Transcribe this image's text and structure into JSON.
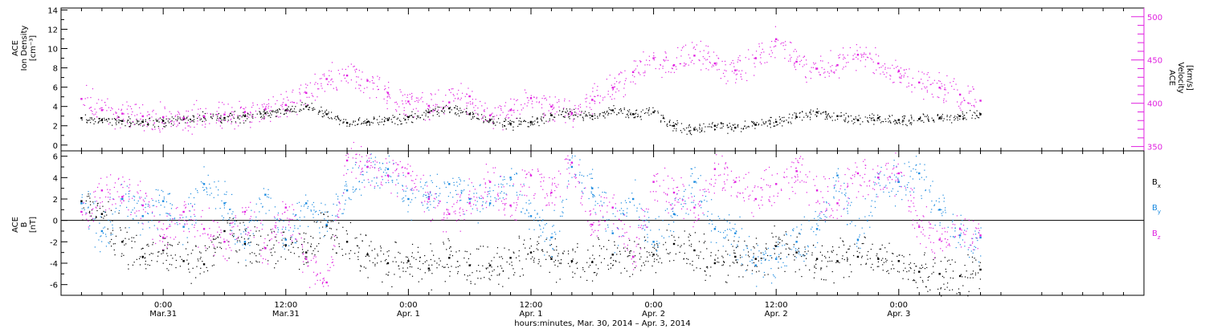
{
  "chart_data": [
    {
      "type": "scatter",
      "left_axis": {
        "label_lines": [
          "ACE",
          "Ion Density",
          "[cm⁻³]"
        ],
        "ticks": [
          0,
          2,
          4,
          6,
          8,
          10,
          12,
          14
        ],
        "ylim": [
          -0.6,
          14.2
        ]
      },
      "right_axis": {
        "label_lines": [
          "ACE",
          "Velocity",
          "[km/s]"
        ],
        "ticks": [
          350,
          400,
          450,
          500
        ],
        "ylim": [
          345,
          510
        ],
        "color": "#e020e0"
      },
      "series": [
        {
          "axis": "left",
          "color": "#000000",
          "x": [
            -8,
            -6,
            -4,
            -2,
            0,
            2,
            4,
            6,
            8,
            10,
            12,
            14,
            16,
            18,
            20,
            22,
            24,
            26,
            28,
            30,
            32,
            34,
            36,
            38,
            40,
            42,
            44,
            46,
            48,
            50,
            52,
            54,
            56,
            58,
            60,
            62,
            64,
            66,
            68,
            70,
            72,
            74,
            76,
            78,
            80
          ],
          "values": [
            2.8,
            2.6,
            2.5,
            2.4,
            2.5,
            2.7,
            2.9,
            2.8,
            3.0,
            3.3,
            3.6,
            4.0,
            3.2,
            2.3,
            2.4,
            2.6,
            2.9,
            3.4,
            3.8,
            3.2,
            2.6,
            2.2,
            2.4,
            3.1,
            3.3,
            3.0,
            3.6,
            3.2,
            3.4,
            2.0,
            1.6,
            2.0,
            1.8,
            2.1,
            2.4,
            2.9,
            3.4,
            3.0,
            2.6,
            2.8,
            2.6,
            2.7,
            2.8,
            3.0,
            3.2
          ]
        },
        {
          "axis": "right",
          "color": "#e020e0",
          "x": [
            -8,
            -6,
            -4,
            -2,
            0,
            2,
            4,
            6,
            8,
            10,
            12,
            14,
            16,
            18,
            20,
            22,
            24,
            26,
            28,
            30,
            32,
            34,
            36,
            38,
            40,
            42,
            44,
            46,
            48,
            50,
            52,
            54,
            56,
            58,
            60,
            62,
            64,
            66,
            68,
            70,
            72,
            74,
            76,
            78,
            80
          ],
          "values": [
            405,
            392,
            388,
            385,
            384,
            383,
            385,
            387,
            390,
            393,
            398,
            412,
            428,
            432,
            426,
            412,
            402,
            397,
            401,
            408,
            386,
            392,
            406,
            396,
            388,
            404,
            418,
            436,
            452,
            444,
            455,
            446,
            438,
            452,
            474,
            448,
            440,
            444,
            456,
            446,
            437,
            424,
            418,
            410,
            403
          ]
        }
      ]
    },
    {
      "type": "scatter",
      "left_axis": {
        "label_lines": [
          "ACE",
          "B",
          "[nT]"
        ],
        "ticks": [
          -6,
          -4,
          -2,
          0,
          2,
          4,
          6
        ],
        "ylim": [
          -7,
          6.5
        ]
      },
      "zero_line": true,
      "legend_position": "right",
      "series": [
        {
          "name": "Bx",
          "color": "#000000",
          "x": [
            -8,
            -6,
            -4,
            -2,
            0,
            2,
            4,
            6,
            8,
            10,
            12,
            14,
            16,
            18,
            20,
            22,
            24,
            26,
            28,
            30,
            32,
            34,
            36,
            38,
            40,
            42,
            44,
            46,
            48,
            50,
            52,
            54,
            56,
            58,
            60,
            62,
            64,
            66,
            68,
            70,
            72,
            74,
            76,
            78,
            80
          ],
          "values": [
            1.8,
            0.6,
            -2.0,
            -3.4,
            -2.8,
            -3.8,
            -4.1,
            -1.0,
            -2.2,
            -2.6,
            -2.3,
            -3.0,
            -0.5,
            -2.0,
            -3.2,
            -4.0,
            -3.8,
            -4.5,
            -3.5,
            -4.2,
            -4.2,
            -3.5,
            -3.0,
            -3.6,
            -3.8,
            -3.9,
            -3.2,
            -3.4,
            -3.2,
            -2.2,
            -2.8,
            -4.0,
            -3.4,
            -3.6,
            -2.4,
            -3.0,
            -3.6,
            -3.8,
            -3.4,
            -3.6,
            -3.8,
            -4.8,
            -5.0,
            -5.2,
            -4.6
          ]
        },
        {
          "name": "By",
          "color": "#1a8ae0",
          "x": [
            -8,
            -6,
            -4,
            -2,
            0,
            2,
            4,
            6,
            8,
            10,
            12,
            14,
            16,
            18,
            20,
            22,
            24,
            26,
            28,
            30,
            32,
            34,
            36,
            38,
            40,
            42,
            44,
            46,
            48,
            50,
            52,
            54,
            56,
            58,
            60,
            62,
            64,
            66,
            68,
            70,
            72,
            74,
            76,
            78,
            80
          ],
          "values": [
            1.6,
            -1.0,
            2.0,
            0.4,
            1.8,
            -0.6,
            3.4,
            1.6,
            -2.0,
            2.4,
            -1.8,
            1.6,
            -0.4,
            2.8,
            5.0,
            4.8,
            2.0,
            2.2,
            3.4,
            2.0,
            1.6,
            4.0,
            0.4,
            -1.6,
            5.0,
            3.0,
            -1.2,
            2.0,
            -2.0,
            0.6,
            3.6,
            -0.8,
            -1.2,
            -4.2,
            -3.6,
            -2.0,
            -0.8,
            4.2,
            -1.8,
            4.0,
            3.6,
            4.4,
            1.0,
            -1.4,
            -1.6
          ]
        },
        {
          "name": "Bz",
          "color": "#e020e0",
          "x": [
            -8,
            -6,
            -4,
            -2,
            0,
            2,
            4,
            6,
            8,
            10,
            12,
            14,
            16,
            18,
            20,
            22,
            24,
            26,
            28,
            30,
            32,
            34,
            36,
            38,
            40,
            42,
            44,
            46,
            48,
            50,
            52,
            54,
            56,
            58,
            60,
            62,
            64,
            66,
            68,
            70,
            72,
            74,
            76,
            78,
            80
          ],
          "values": [
            0.8,
            2.8,
            2.2,
            1.4,
            -1.6,
            0.8,
            -0.8,
            -2.0,
            0.8,
            -2.6,
            1.2,
            -3.6,
            -5.8,
            5.6,
            5.0,
            4.2,
            4.4,
            2.0,
            0.6,
            1.6,
            3.6,
            1.4,
            4.2,
            2.6,
            5.4,
            -0.4,
            1.2,
            -3.4,
            3.6,
            2.6,
            1.2,
            4.8,
            3.6,
            2.0,
            3.4,
            4.6,
            2.8,
            1.6,
            4.4,
            4.0,
            4.4,
            -0.6,
            -1.8,
            -0.8,
            -1.4
          ]
        }
      ]
    }
  ],
  "x_axis": {
    "label": "hours:minutes, Mar. 30, 2014 – Apr.  3, 2014",
    "xlim": [
      -10,
      96
    ],
    "ticks": [
      {
        "x": 0,
        "top": "0:00",
        "bottom": "Mar.31"
      },
      {
        "x": 12,
        "top": "12:00",
        "bottom": "Mar.31"
      },
      {
        "x": 24,
        "top": "0:00",
        "bottom": "Apr.  1"
      },
      {
        "x": 36,
        "top": "12:00",
        "bottom": "Apr.  1"
      },
      {
        "x": 48,
        "top": "0:00",
        "bottom": "Apr.  2"
      },
      {
        "x": 60,
        "top": "12:00",
        "bottom": "Apr.  2"
      },
      {
        "x": 72,
        "top": "0:00",
        "bottom": "Apr.  3"
      }
    ]
  }
}
